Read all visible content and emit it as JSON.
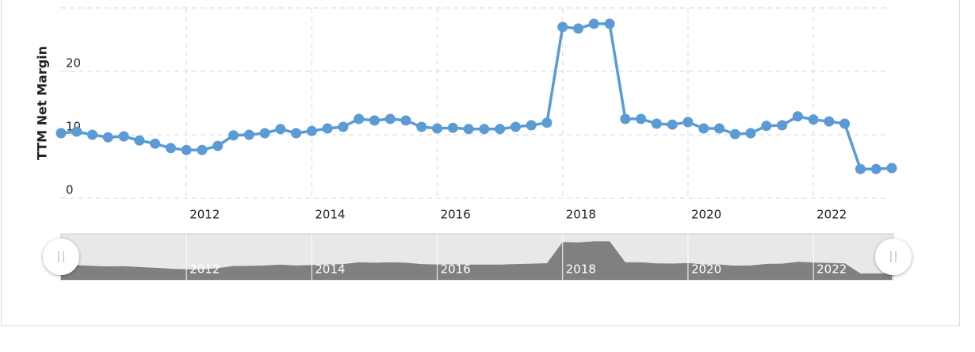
{
  "chart_data": {
    "type": "line",
    "y_label": "TTM Net Margin",
    "x": [
      2010,
      2010.25,
      2010.5,
      2010.75,
      2011,
      2011.25,
      2011.5,
      2011.75,
      2012,
      2012.25,
      2012.5,
      2012.75,
      2013,
      2013.25,
      2013.5,
      2013.75,
      2014,
      2014.25,
      2014.5,
      2014.75,
      2015,
      2015.25,
      2015.5,
      2015.75,
      2016,
      2016.25,
      2016.5,
      2016.75,
      2017,
      2017.25,
      2017.5,
      2017.75,
      2018,
      2018.25,
      2018.5,
      2018.75,
      2019,
      2019.25,
      2019.5,
      2019.75,
      2020,
      2020.25,
      2020.5,
      2020.75,
      2021,
      2021.25,
      2021.5,
      2021.75,
      2022,
      2022.25,
      2022.5,
      2022.75,
      2023,
      2023.25
    ],
    "series": [
      {
        "name": "TTM Net Margin",
        "color": "#5b9bd5",
        "values": [
          10.25,
          10.5,
          10.0,
          9.6,
          9.75,
          9.1,
          8.6,
          7.9,
          7.6,
          7.6,
          8.25,
          9.9,
          10.0,
          10.25,
          10.9,
          10.25,
          10.6,
          11.0,
          11.25,
          12.5,
          12.25,
          12.5,
          12.25,
          11.25,
          11.0,
          11.1,
          10.9,
          10.9,
          10.9,
          11.25,
          11.5,
          11.9,
          27.0,
          26.75,
          27.5,
          27.5,
          12.5,
          12.5,
          11.75,
          11.6,
          12.0,
          11.0,
          11.0,
          10.1,
          10.25,
          11.4,
          11.5,
          12.9,
          12.4,
          12.1,
          11.75,
          4.6,
          4.6,
          4.75
        ]
      }
    ],
    "xlim": [
      2010,
      2023.25
    ],
    "xticks": [
      2012,
      2014,
      2016,
      2018,
      2020,
      2022
    ],
    "ylim": [
      0,
      30
    ],
    "yticks": [
      0,
      10,
      20
    ],
    "grid": true
  }
}
